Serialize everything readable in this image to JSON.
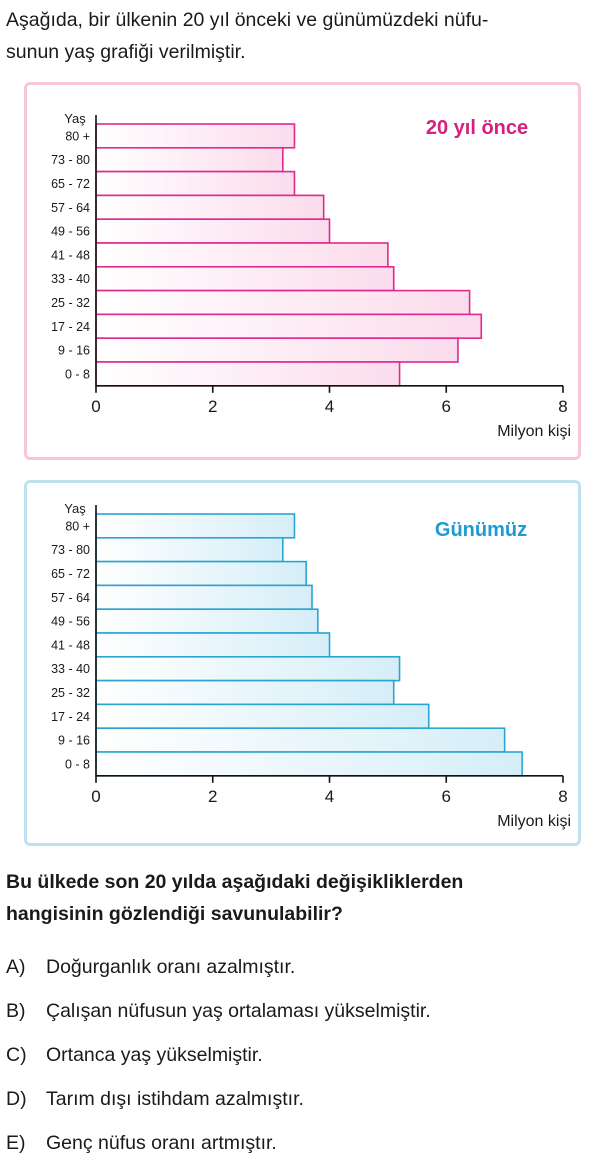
{
  "intro_text": "Aşağıda, bir ülkenin 20 yıl önceki ve günümüzdeki nüfu-sunun yaş grafiği verilmiştir.",
  "intro_lines": [
    "Aşağıda, bir ülkenin 20 yıl önceki ve günümüzdeki nüfu-",
    "sunun yaş grafiği verilmiştir."
  ],
  "chart_data": [
    {
      "type": "bar",
      "orientation": "horizontal",
      "title": "20 yıl önce",
      "ylabel": "Yaş",
      "xlabel": "Milyon kişi",
      "xlim": [
        0,
        8
      ],
      "xticks": [
        "0",
        "2",
        "4",
        "6",
        "8"
      ],
      "categories": [
        "80 +",
        "73 - 80",
        "65 - 72",
        "57 - 64",
        "49 - 56",
        "41 - 48",
        "33 - 40",
        "25 - 32",
        "17 - 24",
        "9 - 16",
        "0 - 8"
      ],
      "values": [
        3.4,
        3.2,
        3.4,
        3.9,
        4.0,
        5.0,
        5.1,
        6.4,
        6.6,
        6.2,
        5.2
      ],
      "grid": false,
      "colors": {
        "bar_stroke": "#e0288f",
        "bar_fill_start": "#ffffff",
        "bar_fill_end": "#fbdcec",
        "title": "#d6207f",
        "border": "#f7c6dc"
      }
    },
    {
      "type": "bar",
      "orientation": "horizontal",
      "title": "Günümüz",
      "ylabel": "Yaş",
      "xlabel": "Milyon kişi",
      "xlim": [
        0,
        8
      ],
      "xticks": [
        "0",
        "2",
        "4",
        "6",
        "8"
      ],
      "categories": [
        "80 +",
        "73 - 80",
        "65 - 72",
        "57 - 64",
        "49 - 56",
        "41 - 48",
        "33 - 40",
        "25 - 32",
        "17 - 24",
        "9 - 16",
        "0 - 8"
      ],
      "values": [
        3.4,
        3.2,
        3.6,
        3.7,
        3.8,
        4.0,
        5.2,
        5.1,
        5.7,
        7.0,
        7.3
      ],
      "grid": false,
      "colors": {
        "bar_stroke": "#2aa5d2",
        "bar_fill_start": "#ffffff",
        "bar_fill_end": "#d6eef8",
        "title": "#1e9bd2",
        "border": "#bfe2ef"
      }
    }
  ],
  "question": "Bu ülkede son 20 yılda aşağıdaki değişikliklerden hangisinin gözlendiği savunulabilir?",
  "question_lines": [
    "Bu ülkede son 20 yılda aşağıdaki değişikliklerden",
    "hangisinin gözlendiği savunulabilir?"
  ],
  "options": [
    {
      "letter": "A)",
      "text": "Doğurganlık oranı azalmıştır."
    },
    {
      "letter": "B)",
      "text": "Çalışan nüfusun yaş ortalaması yükselmiştir."
    },
    {
      "letter": "C)",
      "text": "Ortanca yaş yükselmiştir."
    },
    {
      "letter": "D)",
      "text": "Tarım dışı istihdam azalmıştır."
    },
    {
      "letter": "E)",
      "text": "Genç nüfus oranı artmıştır."
    }
  ]
}
